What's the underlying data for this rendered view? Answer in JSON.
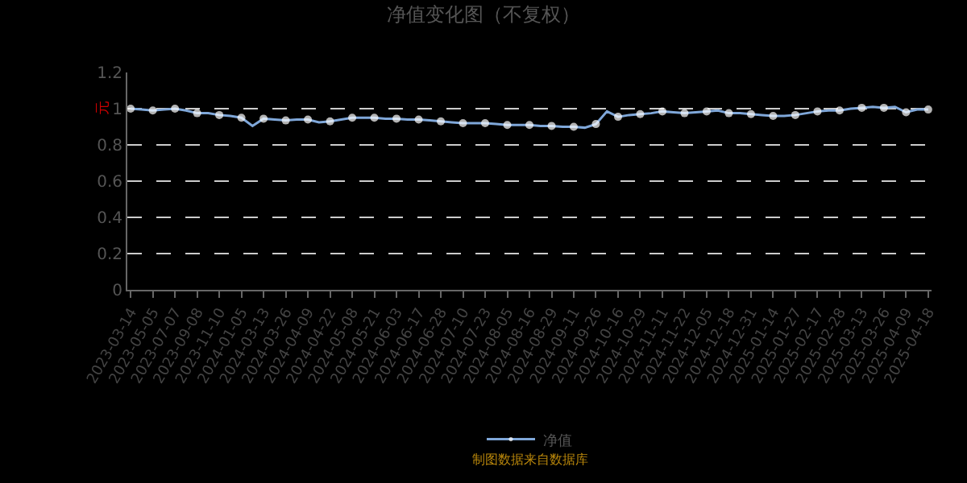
{
  "chart_data": {
    "type": "line",
    "title": "净值变化图（不复权）",
    "ylabel": "元",
    "categories": [
      "2023-03-14",
      null,
      "2023-05-05",
      null,
      "2023-07-07",
      null,
      "2023-09-08",
      null,
      "2023-11-10",
      null,
      "2024-01-05",
      null,
      "2024-03-13",
      null,
      "2024-03-26",
      null,
      "2024-04-09",
      null,
      "2024-04-22",
      null,
      "2024-05-08",
      null,
      "2024-05-21",
      null,
      "2024-06-03",
      null,
      "2024-06-17",
      null,
      "2024-06-28",
      null,
      "2024-07-10",
      null,
      "2024-07-23",
      null,
      "2024-08-05",
      null,
      "2024-08-16",
      null,
      "2024-08-29",
      null,
      "2024-09-11",
      null,
      "2024-09-26",
      null,
      "2024-10-16",
      null,
      "2024-10-29",
      null,
      "2024-11-11",
      null,
      "2024-11-22",
      null,
      "2024-12-05",
      null,
      "2024-12-18",
      null,
      "2024-12-31",
      null,
      "2025-01-14",
      null,
      "2025-01-27",
      null,
      "2025-02-17",
      null,
      "2025-02-28",
      null,
      "2025-03-13",
      null,
      "2025-03-26",
      null,
      "2025-04-09",
      null,
      "2025-04-18"
    ],
    "series": [
      {
        "name": "净值",
        "color": "#7fa7d9",
        "values": [
          1.0,
          0.995,
          0.99,
          0.995,
          1.0,
          0.99,
          0.975,
          0.975,
          0.965,
          0.96,
          0.95,
          0.905,
          0.945,
          0.94,
          0.935,
          0.94,
          0.94,
          0.925,
          0.93,
          0.94,
          0.95,
          0.95,
          0.95,
          0.945,
          0.945,
          0.94,
          0.94,
          0.935,
          0.93,
          0.925,
          0.92,
          0.92,
          0.92,
          0.915,
          0.91,
          0.91,
          0.91,
          0.905,
          0.905,
          0.9,
          0.9,
          0.895,
          0.915,
          0.985,
          0.955,
          0.965,
          0.97,
          0.975,
          0.985,
          0.98,
          0.975,
          0.98,
          0.985,
          0.99,
          0.975,
          0.975,
          0.97,
          0.965,
          0.96,
          0.96,
          0.965,
          0.975,
          0.985,
          0.99,
          0.99,
          1.0,
          1.005,
          1.01,
          1.005,
          1.01,
          0.98,
          0.995,
          0.995
        ]
      }
    ],
    "ylim": [
      0,
      1.2
    ],
    "yticks": [
      0,
      0.2,
      0.4,
      0.6,
      0.8,
      1,
      1.2
    ],
    "grid": "y",
    "legend": "bottom",
    "marker": "circle",
    "line_style": "solid",
    "annotations": [
      "制图数据来自数据库"
    ]
  }
}
